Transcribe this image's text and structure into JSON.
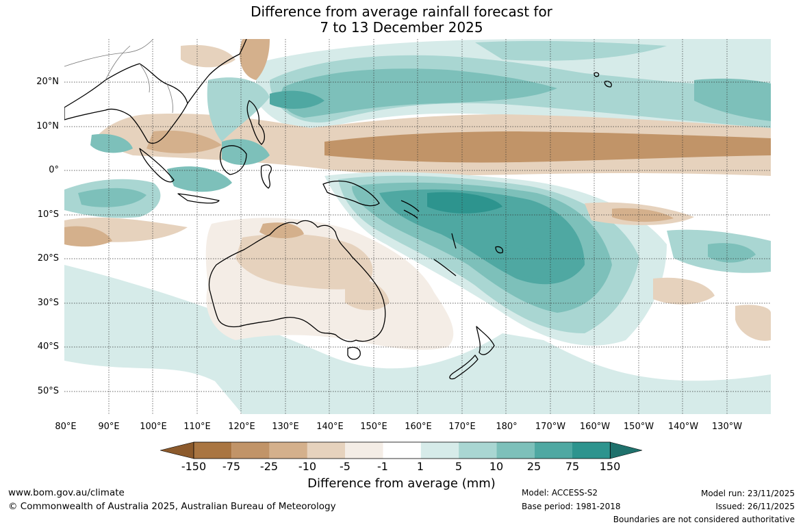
{
  "title": {
    "line1": "Difference from average rainfall forecast for",
    "line2": "7 to 13 December 2025"
  },
  "map": {
    "region": "Australia, Maritime Continent and south-west Pacific",
    "lat_labels": [
      "20°N",
      "10°N",
      "0°",
      "10°S",
      "20°S",
      "30°S",
      "40°S",
      "50°S"
    ],
    "lon_labels": [
      "80°E",
      "90°E",
      "100°E",
      "110°E",
      "120°E",
      "130°E",
      "140°E",
      "150°E",
      "160°E",
      "170°E",
      "180°",
      "170°W",
      "160°W",
      "150°W",
      "140°W",
      "130°W"
    ]
  },
  "legend": {
    "title": "Difference from average (mm)",
    "ticks": [
      "-150",
      "-75",
      "-25",
      "-10",
      "-5",
      "-1",
      "1",
      "5",
      "10",
      "25",
      "75",
      "150"
    ],
    "colors": [
      "#8c5a2c",
      "#a97541",
      "#c19468",
      "#d4b08c",
      "#e6d2bd",
      "#f4ede6",
      "#ffffff",
      "#d6ebe9",
      "#a9d6d2",
      "#7dc0ba",
      "#4fa8a2",
      "#2d948e",
      "#1f716c"
    ]
  },
  "footer": {
    "website": "www.bom.gov.au/climate",
    "copyright": "© Commonwealth of Australia 2025, Australian Bureau of Meteorology",
    "model": "Model: ACCESS-S2",
    "base_period": "Base period: 1981-2018",
    "model_run": "Model run: 23/11/2025",
    "issued": "Issued: 26/11/2025",
    "disclaimer": "Boundaries are not considered authoritative"
  }
}
